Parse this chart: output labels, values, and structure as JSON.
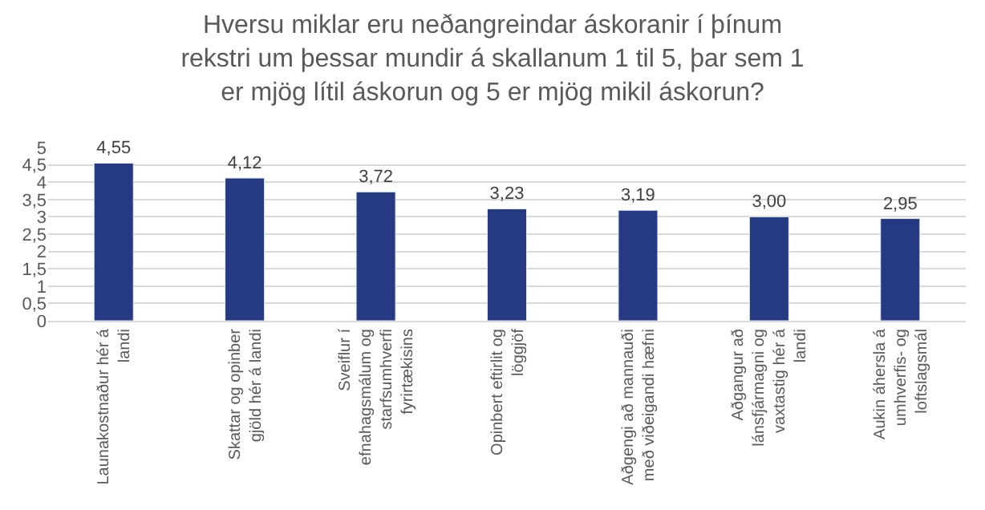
{
  "chart_data": {
    "type": "bar",
    "title": "Hversu miklar eru neðangreindar áskoranir í þínum rekstri um þessar mundir á skallanum 1 til 5, þar sem 1 er mjög lítil áskorun og 5 er mjög mikil áskorun?",
    "categories": [
      "Launakostnaður hér á landi",
      "Skattar og opinber gjöld hér á landi",
      "Sveiflur í efnahagsmálum og starfsumhverfi fyrirtækisins",
      "Opinbert eftirlit og löggjöf",
      "Aðgengi að mannauði með viðeigandi hæfni",
      "Aðgangur að lánsfjármagni og vaxtastig hér á landi",
      "Aukin áhersla á umhverfis- og loftslagsmál"
    ],
    "values": [
      4.55,
      4.12,
      3.72,
      3.23,
      3.19,
      3.0,
      2.95
    ],
    "value_labels": [
      "4,55",
      "4,12",
      "3,72",
      "3,23",
      "3,19",
      "3,00",
      "2,95"
    ],
    "color": "#253a83",
    "ylim": [
      0,
      5
    ],
    "yticks": [
      0,
      {
        "value": 0.5,
        "label": "0,5"
      },
      1,
      {
        "value": 1.5,
        "label": "1,5"
      },
      2,
      {
        "value": 2.5,
        "label": "2,5"
      },
      3,
      {
        "value": 3.5,
        "label": "3,5"
      },
      4,
      {
        "value": 4.5,
        "label": "4,5"
      },
      5
    ],
    "grid": "y",
    "legend": false
  }
}
